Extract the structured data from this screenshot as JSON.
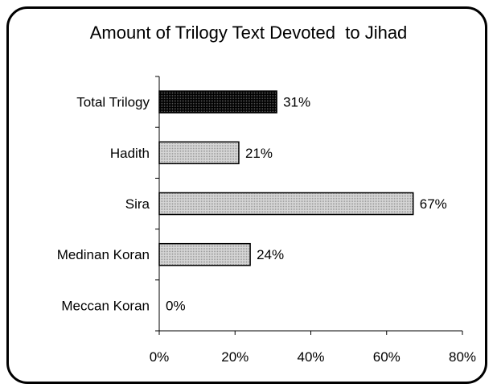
{
  "chart_data": {
    "type": "bar",
    "orientation": "horizontal",
    "title": "Amount of Trilogy Text Devoted  to Jihad",
    "categories": [
      "Total Trilogy",
      "Hadith",
      "Sira",
      "Medinan Koran",
      "Meccan Koran"
    ],
    "values": [
      31,
      21,
      67,
      24,
      0
    ],
    "value_labels": [
      "31%",
      "21%",
      "67%",
      "24%",
      "0%"
    ],
    "x_ticks": [
      0,
      20,
      40,
      60,
      80
    ],
    "x_tick_labels": [
      "0%",
      "20%",
      "40%",
      "60%",
      "80%"
    ],
    "xlim": [
      0,
      80
    ],
    "xlabel": "",
    "ylabel": "",
    "grid": false,
    "colors": {
      "highlight": "#000000",
      "bars": "#c8c8c8",
      "bar_border": "#000000"
    }
  }
}
